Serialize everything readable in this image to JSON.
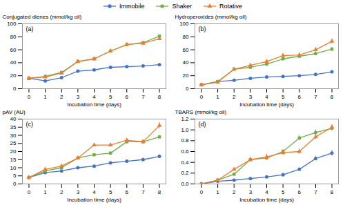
{
  "chart_data": [
    {
      "type": "line",
      "annotation": "(a)",
      "x": [
        0,
        1,
        2,
        3,
        4,
        5,
        6,
        7,
        8
      ],
      "xlim": [
        -0.4,
        8.4
      ],
      "xticks": [
        0,
        1,
        2,
        3,
        4,
        5,
        6,
        7,
        8
      ],
      "xlabel": "Incubation time (days)",
      "ylabel": "Conjugated dienes (mmol/kg oil)",
      "ylim": [
        0,
        100
      ],
      "yticks": [
        0,
        20,
        40,
        60,
        80,
        100
      ],
      "series": [
        {
          "name": "Immobile",
          "color": "#4472c4",
          "marker": "circle",
          "values": [
            16,
            12,
            17,
            27,
            29,
            33,
            34,
            35,
            37
          ]
        },
        {
          "name": "Shaker",
          "color": "#70ad47",
          "marker": "square",
          "values": [
            16,
            19,
            25,
            42,
            46,
            58,
            68,
            71,
            81
          ]
        },
        {
          "name": "Rotative",
          "color": "#ed7d31",
          "marker": "triangle",
          "values": [
            16,
            18,
            24,
            42,
            46,
            58,
            68,
            70,
            77
          ]
        }
      ]
    },
    {
      "type": "line",
      "annotation": "(b)",
      "x": [
        0,
        1,
        2,
        3,
        4,
        5,
        6,
        7,
        8
      ],
      "xlim": [
        -0.4,
        8.4
      ],
      "xticks": [
        0,
        1,
        2,
        3,
        4,
        5,
        6,
        7,
        8
      ],
      "xlabel": "Incubation time (days)",
      "ylabel": "Hydroperoxides (mmol/kg oil)",
      "ylim": [
        0,
        100
      ],
      "yticks": [
        0,
        20,
        40,
        60,
        80,
        100
      ],
      "series": [
        {
          "name": "Immobile",
          "color": "#4472c4",
          "marker": "circle",
          "values": [
            6,
            11,
            13,
            16,
            18,
            19,
            20,
            22,
            26
          ],
          "errors": [
            0,
            0.5,
            1,
            1,
            1,
            1,
            1,
            1,
            1.5
          ]
        },
        {
          "name": "Shaker",
          "color": "#70ad47",
          "marker": "square",
          "values": [
            6,
            11,
            30,
            33,
            38,
            46,
            50,
            54,
            61
          ],
          "errors": [
            0,
            0.5,
            2,
            2,
            2,
            2.5,
            2.5,
            2.5,
            3
          ]
        },
        {
          "name": "Rotative",
          "color": "#ed7d31",
          "marker": "triangle",
          "values": [
            6,
            10,
            30,
            36,
            42,
            51,
            52,
            60,
            73
          ],
          "errors": [
            0,
            0.5,
            2,
            2.5,
            2.5,
            3,
            3,
            3.5,
            4
          ]
        }
      ]
    },
    {
      "type": "line",
      "annotation": "(c)",
      "x": [
        0,
        1,
        2,
        3,
        4,
        5,
        6,
        7,
        8
      ],
      "xlim": [
        -0.4,
        8.4
      ],
      "xticks": [
        0,
        1,
        2,
        3,
        4,
        5,
        6,
        7,
        8
      ],
      "xlabel": "Incubation time (days)",
      "ylabel": "pAV (AU)",
      "ylim": [
        0,
        40
      ],
      "yticks": [
        0,
        5,
        10,
        15,
        20,
        25,
        30,
        35,
        40
      ],
      "series": [
        {
          "name": "Immobile",
          "color": "#4472c4",
          "marker": "circle",
          "values": [
            4,
            7,
            8,
            10,
            11,
            13,
            14,
            15,
            17
          ],
          "errors": [
            0,
            0.3,
            0.5,
            0.5,
            0.5,
            0.8,
            0.8,
            1,
            1
          ]
        },
        {
          "name": "Shaker",
          "color": "#70ad47",
          "marker": "square",
          "values": [
            4,
            8,
            10,
            16,
            18,
            19,
            26,
            26,
            29
          ],
          "errors": [
            0,
            0.3,
            0.5,
            0.5,
            0.8,
            1,
            1,
            1,
            1
          ]
        },
        {
          "name": "Rotative",
          "color": "#ed7d31",
          "marker": "triangle",
          "values": [
            4,
            9,
            11,
            16,
            24,
            24,
            27,
            26,
            36
          ],
          "errors": [
            0,
            0.3,
            0.5,
            0.5,
            1,
            1,
            1.2,
            1.5,
            2
          ]
        }
      ]
    },
    {
      "type": "line",
      "annotation": "(d)",
      "x": [
        0,
        1,
        2,
        3,
        4,
        5,
        6,
        7,
        8
      ],
      "xlim": [
        -0.4,
        8.4
      ],
      "xticks": [
        0,
        1,
        2,
        3,
        4,
        5,
        6,
        7,
        8
      ],
      "xlabel": "Incubation time (days)",
      "ylabel": "TBARS (mmol/kg oil)",
      "ylim": [
        0.0,
        1.2
      ],
      "yticks": [
        {
          "value": 0,
          "label": "0.0"
        },
        0.2,
        0.4,
        0.6,
        0.8,
        {
          "value": 1,
          "label": "1.0"
        },
        1.2
      ],
      "series": [
        {
          "name": "Immobile",
          "color": "#4472c4",
          "marker": "circle",
          "values": [
            0.0,
            0.05,
            0.07,
            0.1,
            0.13,
            0.17,
            0.27,
            0.47,
            0.57
          ],
          "errors": [
            0,
            0.01,
            0.01,
            0.02,
            0.02,
            0.03,
            0.03,
            0.04,
            0.05
          ]
        },
        {
          "name": "Shaker",
          "color": "#70ad47",
          "marker": "square",
          "values": [
            0.0,
            0.07,
            0.18,
            0.45,
            0.48,
            0.6,
            0.85,
            0.95,
            1.03
          ],
          "errors": [
            0,
            0.01,
            0.02,
            0.03,
            0.04,
            0.04,
            0.05,
            0.05,
            0.05
          ]
        },
        {
          "name": "Rotative",
          "color": "#ed7d31",
          "marker": "triangle",
          "values": [
            0.0,
            0.07,
            0.27,
            0.45,
            0.5,
            0.58,
            0.6,
            0.87,
            1.05
          ],
          "errors": [
            0,
            0.01,
            0.02,
            0.04,
            0.05,
            0.05,
            0.05,
            0.05,
            0.05
          ]
        }
      ]
    }
  ]
}
